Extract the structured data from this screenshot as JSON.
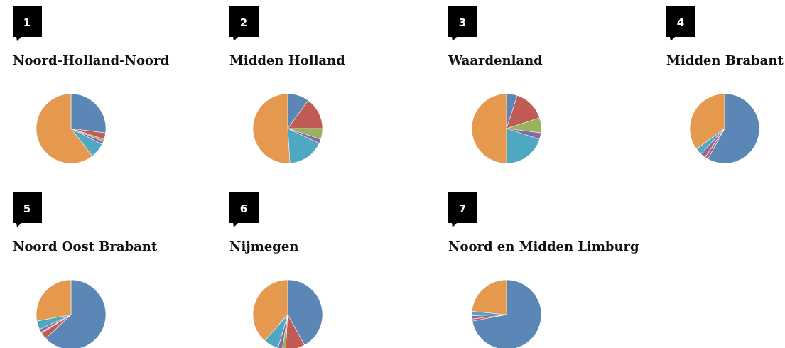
{
  "chart_data": [
    {
      "type": "pie",
      "number": "1",
      "title": "Noord-Holland-Noord",
      "values": [
        27,
        3,
        1,
        1.5,
        7,
        60.5
      ],
      "colors": [
        "#5b87b7",
        "#c05b55",
        "#99b25c",
        "#8869a5",
        "#4fa8c2",
        "#e4994e"
      ]
    },
    {
      "type": "pie",
      "number": "2",
      "title": "Midden Holland",
      "values": [
        10,
        15,
        5,
        2,
        17,
        51
      ],
      "colors": [
        "#5b87b7",
        "#c05b55",
        "#99b25c",
        "#8869a5",
        "#4fa8c2",
        "#e4994e"
      ]
    },
    {
      "type": "pie",
      "number": "3",
      "title": "Waardenland",
      "values": [
        5,
        15,
        7,
        3,
        20,
        50
      ],
      "colors": [
        "#5b87b7",
        "#c05b55",
        "#99b25c",
        "#8869a5",
        "#4fa8c2",
        "#e4994e"
      ]
    },
    {
      "type": "pie",
      "number": "4",
      "title": "Midden Brabant",
      "values": [
        58,
        1.5,
        0,
        2.5,
        3,
        35
      ],
      "colors": [
        "#5b87b7",
        "#c05b55",
        "#99b25c",
        "#8869a5",
        "#4fa8c2",
        "#e4994e"
      ]
    },
    {
      "type": "pie",
      "number": "5",
      "title": "Noord Oost Brabant",
      "values": [
        63,
        3,
        0.5,
        1.5,
        4,
        28
      ],
      "colors": [
        "#5b87b7",
        "#c05b55",
        "#99b25c",
        "#8869a5",
        "#4fa8c2",
        "#e4994e"
      ]
    },
    {
      "type": "pie",
      "number": "6",
      "title": "Nijmegen",
      "values": [
        42,
        9,
        1.5,
        2,
        7,
        38.5
      ],
      "colors": [
        "#5b87b7",
        "#c05b55",
        "#99b25c",
        "#8869a5",
        "#4fa8c2",
        "#e4994e"
      ]
    },
    {
      "type": "pie",
      "number": "7",
      "title": "Noord en Midden Limburg",
      "values": [
        72,
        1,
        0,
        1.5,
        2,
        23.5
      ],
      "colors": [
        "#5b87b7",
        "#c05b55",
        "#99b25c",
        "#8869a5",
        "#4fa8c2",
        "#e4994e"
      ]
    }
  ]
}
